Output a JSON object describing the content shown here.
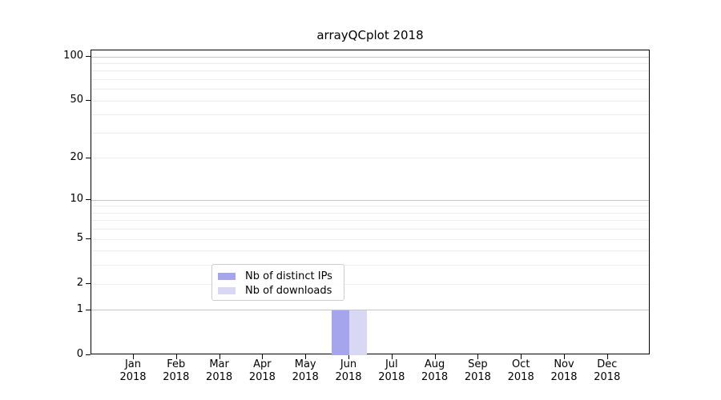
{
  "figure": {
    "title": "arrayQCplot 2018"
  },
  "chart_data": {
    "type": "bar",
    "title": "arrayQCplot 2018",
    "months": [
      "Jan",
      "Feb",
      "Mar",
      "Apr",
      "May",
      "Jun",
      "Jul",
      "Aug",
      "Sep",
      "Oct",
      "Nov",
      "Dec"
    ],
    "year": "2018",
    "categories": [
      "Jan 2018",
      "Feb 2018",
      "Mar 2018",
      "Apr 2018",
      "May 2018",
      "Jun 2018",
      "Jul 2018",
      "Aug 2018",
      "Sep 2018",
      "Oct 2018",
      "Nov 2018",
      "Dec 2018"
    ],
    "series": [
      {
        "name": "Nb of distinct IPs",
        "color": "#a5a5ee",
        "values": [
          0,
          0,
          0,
          0,
          0,
          1,
          0,
          0,
          0,
          0,
          0,
          0
        ]
      },
      {
        "name": "Nb of downloads",
        "color": "#d8d8f5",
        "values": [
          0,
          0,
          0,
          0,
          0,
          1,
          0,
          0,
          0,
          0,
          0,
          0
        ]
      }
    ],
    "xlabel": "",
    "ylabel": "",
    "y_scale": "log1p",
    "ylim": [
      0,
      110
    ],
    "y_tick_values": [
      0,
      1,
      2,
      5,
      10,
      20,
      50,
      100
    ],
    "y_major_gridlines": [
      1,
      10,
      100
    ],
    "y_minor_gridlines": [
      2,
      3,
      4,
      5,
      6,
      7,
      8,
      9,
      20,
      30,
      40,
      50,
      60,
      70,
      80,
      90
    ],
    "grid": true,
    "legend_position": "bottom-center"
  },
  "colors": {
    "series_distinct_ips": "#a5a5ee",
    "series_downloads": "#d8d8f5",
    "grid_major": "#c6c6c6",
    "grid_minor": "#ededed",
    "axis": "#000000",
    "legend_border": "#cccccc",
    "background": "#ffffff"
  }
}
